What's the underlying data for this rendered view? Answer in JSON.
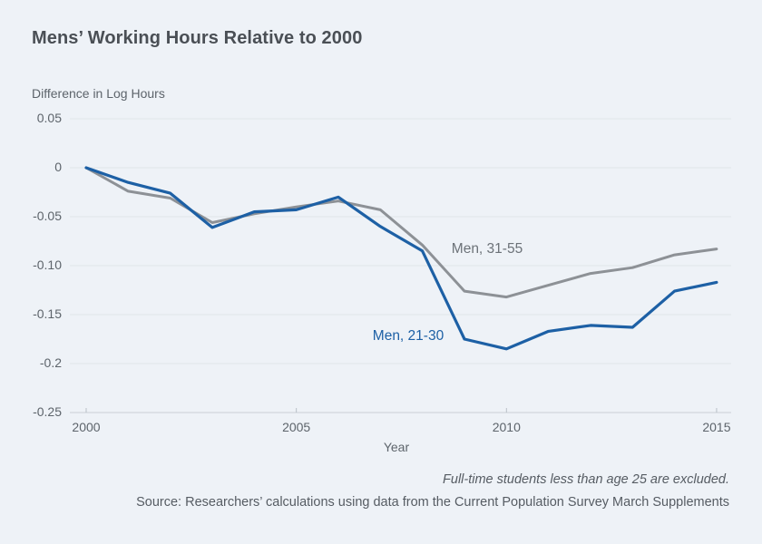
{
  "page": {
    "title": "Mens’ Working Hours Relative to 2000",
    "footnote": "Full-time students less than age 25 are excluded.",
    "source": "Source: Researchers’ calculations using data from the Current Population Survey March Supplements"
  },
  "colors": {
    "background": "#eef2f7",
    "gridline": "#e0e5ea",
    "axis_line": "#c9cfd6",
    "tick_mark": "#b9c0c7",
    "title_text": "#4a4f55",
    "axis_text": "#5d646b"
  },
  "chart_data": {
    "type": "line",
    "title": "Mens’ Working Hours Relative to 2000",
    "ylabel": "Difference in Log Hours",
    "xlabel": "Year",
    "xlim": [
      2000,
      2015
    ],
    "ylim": [
      -0.25,
      0.05
    ],
    "grid": "horizontal",
    "legend": "inline-labels",
    "x": [
      2000,
      2001,
      2002,
      2003,
      2004,
      2005,
      2006,
      2007,
      2008,
      2009,
      2010,
      2011,
      2012,
      2013,
      2014,
      2015
    ],
    "series": [
      {
        "name": "Men, 31-55",
        "color": "#8d9196",
        "values": [
          0,
          -0.024,
          -0.031,
          -0.056,
          -0.047,
          -0.04,
          -0.034,
          -0.043,
          -0.079,
          -0.126,
          -0.132,
          -0.12,
          -0.108,
          -0.102,
          -0.089,
          -0.083
        ]
      },
      {
        "name": "Men, 21-30",
        "color": "#1d60a5",
        "values": [
          0,
          -0.015,
          -0.026,
          -0.061,
          -0.045,
          -0.043,
          -0.03,
          -0.06,
          -0.085,
          -0.175,
          -0.185,
          -0.167,
          -0.161,
          -0.163,
          -0.126,
          -0.117
        ]
      }
    ],
    "y_ticks": [
      {
        "value": 0.05,
        "label": "0.05"
      },
      {
        "value": 0,
        "label": "0"
      },
      {
        "value": -0.05,
        "label": "-0.05"
      },
      {
        "value": -0.1,
        "label": "-0.10"
      },
      {
        "value": -0.15,
        "label": "-0.15"
      },
      {
        "value": -0.2,
        "label": "-0.2"
      },
      {
        "value": -0.25,
        "label": "-0.25"
      }
    ],
    "x_ticks": [
      {
        "value": 2000,
        "label": "2000"
      },
      {
        "value": 2005,
        "label": "2005"
      },
      {
        "value": 2010,
        "label": "2010"
      },
      {
        "value": 2015,
        "label": "2015"
      }
    ]
  }
}
